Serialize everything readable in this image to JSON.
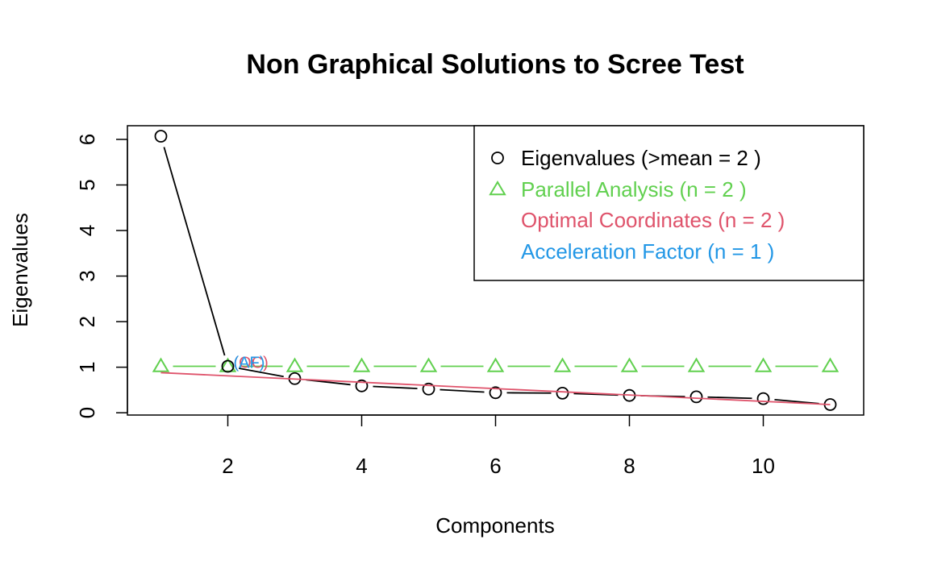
{
  "chart_data": {
    "type": "scatter",
    "title": "Non Graphical Solutions to Scree Test",
    "xlabel": "Components",
    "ylabel": "Eigenvalues",
    "xlim": [
      0.5,
      11.5
    ],
    "ylim": [
      -0.05,
      6.3
    ],
    "x_ticks": [
      2,
      4,
      6,
      8,
      10
    ],
    "y_ticks": [
      0,
      1,
      2,
      3,
      4,
      5,
      6
    ],
    "grid": false,
    "legend_position": "top-right",
    "x": [
      1,
      2,
      3,
      4,
      5,
      6,
      7,
      8,
      9,
      10,
      11
    ],
    "series": [
      {
        "name": "Eigenvalues (>mean  =  2 )",
        "color": "#000000",
        "marker": "circle",
        "line": true,
        "values": [
          6.07,
          1.02,
          0.75,
          0.59,
          0.52,
          0.44,
          0.43,
          0.38,
          0.35,
          0.31,
          0.18
        ]
      },
      {
        "name": "Parallel Analysis (n =  2 )",
        "color": "#61D04F",
        "marker": "triangle",
        "line": true,
        "values": [
          1.02,
          1.02,
          1.02,
          1.02,
          1.02,
          1.02,
          1.02,
          1.02,
          1.02,
          1.02,
          1.02
        ]
      },
      {
        "name": "Optimal Coordinates (n =  2 )",
        "color": "#DF536B",
        "marker": "none",
        "line": true,
        "x": [
          1,
          11
        ],
        "values": [
          0.88,
          0.18
        ]
      },
      {
        "name": "Acceleration Factor (n =  1 )",
        "color": "#2297E6",
        "marker": "none",
        "line": false,
        "values": []
      }
    ],
    "annotations": [
      {
        "text": "(OC)",
        "x": 2,
        "y": 1.02,
        "color": "#DF536B"
      },
      {
        "text": "(AF)",
        "x": 2,
        "y": 1.02,
        "color": "#2297E6"
      }
    ]
  }
}
